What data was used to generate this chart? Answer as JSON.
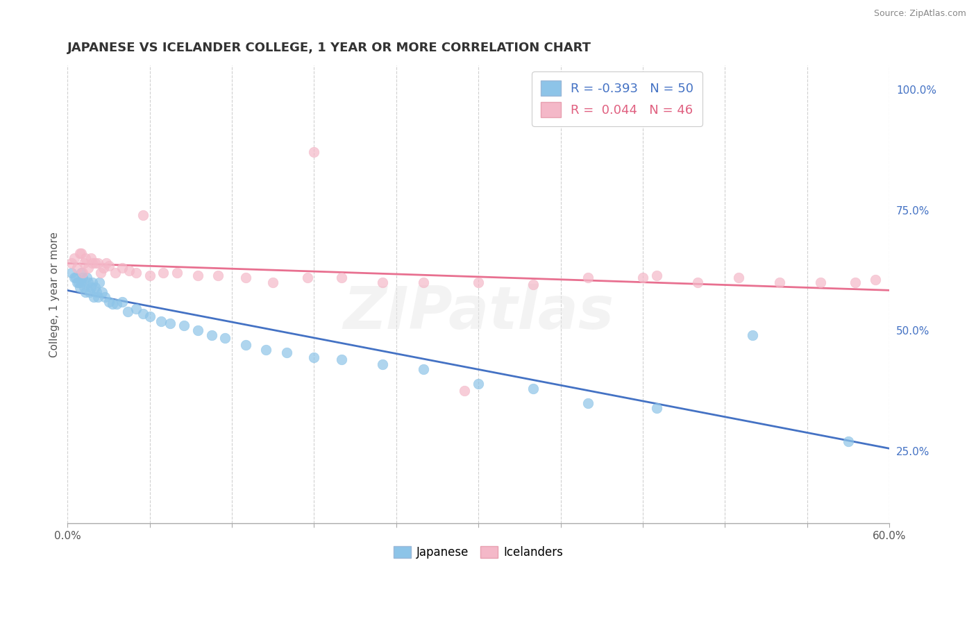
{
  "title": "JAPANESE VS ICELANDER COLLEGE, 1 YEAR OR MORE CORRELATION CHART",
  "source_text": "Source: ZipAtlas.com",
  "ylabel": "College, 1 year or more",
  "xlim": [
    0.0,
    0.6
  ],
  "ylim": [
    0.1,
    1.05
  ],
  "xticks": [
    0.0,
    0.06,
    0.12,
    0.18,
    0.24,
    0.3,
    0.36,
    0.42,
    0.48,
    0.54,
    0.6
  ],
  "xticklabels": [
    "0.0%",
    "",
    "",
    "",
    "",
    "",
    "",
    "",
    "",
    "",
    "60.0%"
  ],
  "yticks_right": [
    0.25,
    0.5,
    0.75,
    1.0
  ],
  "yticklabels_right": [
    "25.0%",
    "50.0%",
    "75.0%",
    "100.0%"
  ],
  "blue_color": "#8dc4e8",
  "pink_color": "#f4b8c8",
  "blue_line_color": "#4472c4",
  "pink_line_color": "#e87090",
  "background_color": "#ffffff",
  "grid_color": "#d0d0d0",
  "R_japanese": -0.393,
  "R_icelander": 0.044,
  "N_japanese": 50,
  "N_icelander": 46,
  "japanese_x": [
    0.003,
    0.005,
    0.006,
    0.007,
    0.008,
    0.009,
    0.01,
    0.01,
    0.011,
    0.012,
    0.013,
    0.014,
    0.015,
    0.016,
    0.017,
    0.018,
    0.019,
    0.02,
    0.021,
    0.022,
    0.023,
    0.025,
    0.027,
    0.03,
    0.033,
    0.036,
    0.04,
    0.044,
    0.05,
    0.055,
    0.06,
    0.068,
    0.075,
    0.085,
    0.095,
    0.105,
    0.115,
    0.13,
    0.145,
    0.16,
    0.18,
    0.2,
    0.23,
    0.26,
    0.3,
    0.34,
    0.38,
    0.43,
    0.5,
    0.57
  ],
  "japanese_y": [
    0.62,
    0.61,
    0.61,
    0.6,
    0.6,
    0.59,
    0.62,
    0.6,
    0.61,
    0.59,
    0.58,
    0.61,
    0.6,
    0.58,
    0.59,
    0.6,
    0.57,
    0.59,
    0.58,
    0.57,
    0.6,
    0.58,
    0.57,
    0.56,
    0.555,
    0.555,
    0.56,
    0.54,
    0.545,
    0.535,
    0.53,
    0.52,
    0.515,
    0.51,
    0.5,
    0.49,
    0.485,
    0.47,
    0.46,
    0.455,
    0.445,
    0.44,
    0.43,
    0.42,
    0.39,
    0.38,
    0.35,
    0.34,
    0.49,
    0.27
  ],
  "icelander_x": [
    0.003,
    0.005,
    0.007,
    0.009,
    0.01,
    0.011,
    0.012,
    0.013,
    0.015,
    0.017,
    0.018,
    0.02,
    0.022,
    0.024,
    0.026,
    0.028,
    0.03,
    0.035,
    0.04,
    0.045,
    0.05,
    0.06,
    0.07,
    0.08,
    0.095,
    0.11,
    0.13,
    0.15,
    0.175,
    0.2,
    0.23,
    0.26,
    0.3,
    0.34,
    0.38,
    0.42,
    0.46,
    0.49,
    0.52,
    0.55,
    0.575,
    0.59,
    0.18,
    0.29,
    0.43,
    0.055
  ],
  "icelander_y": [
    0.64,
    0.65,
    0.63,
    0.66,
    0.66,
    0.62,
    0.64,
    0.65,
    0.63,
    0.65,
    0.64,
    0.64,
    0.64,
    0.62,
    0.63,
    0.64,
    0.635,
    0.62,
    0.63,
    0.625,
    0.62,
    0.615,
    0.62,
    0.62,
    0.615,
    0.615,
    0.61,
    0.6,
    0.61,
    0.61,
    0.6,
    0.6,
    0.6,
    0.595,
    0.61,
    0.61,
    0.6,
    0.61,
    0.6,
    0.6,
    0.6,
    0.605,
    0.87,
    0.375,
    0.615,
    0.74
  ]
}
